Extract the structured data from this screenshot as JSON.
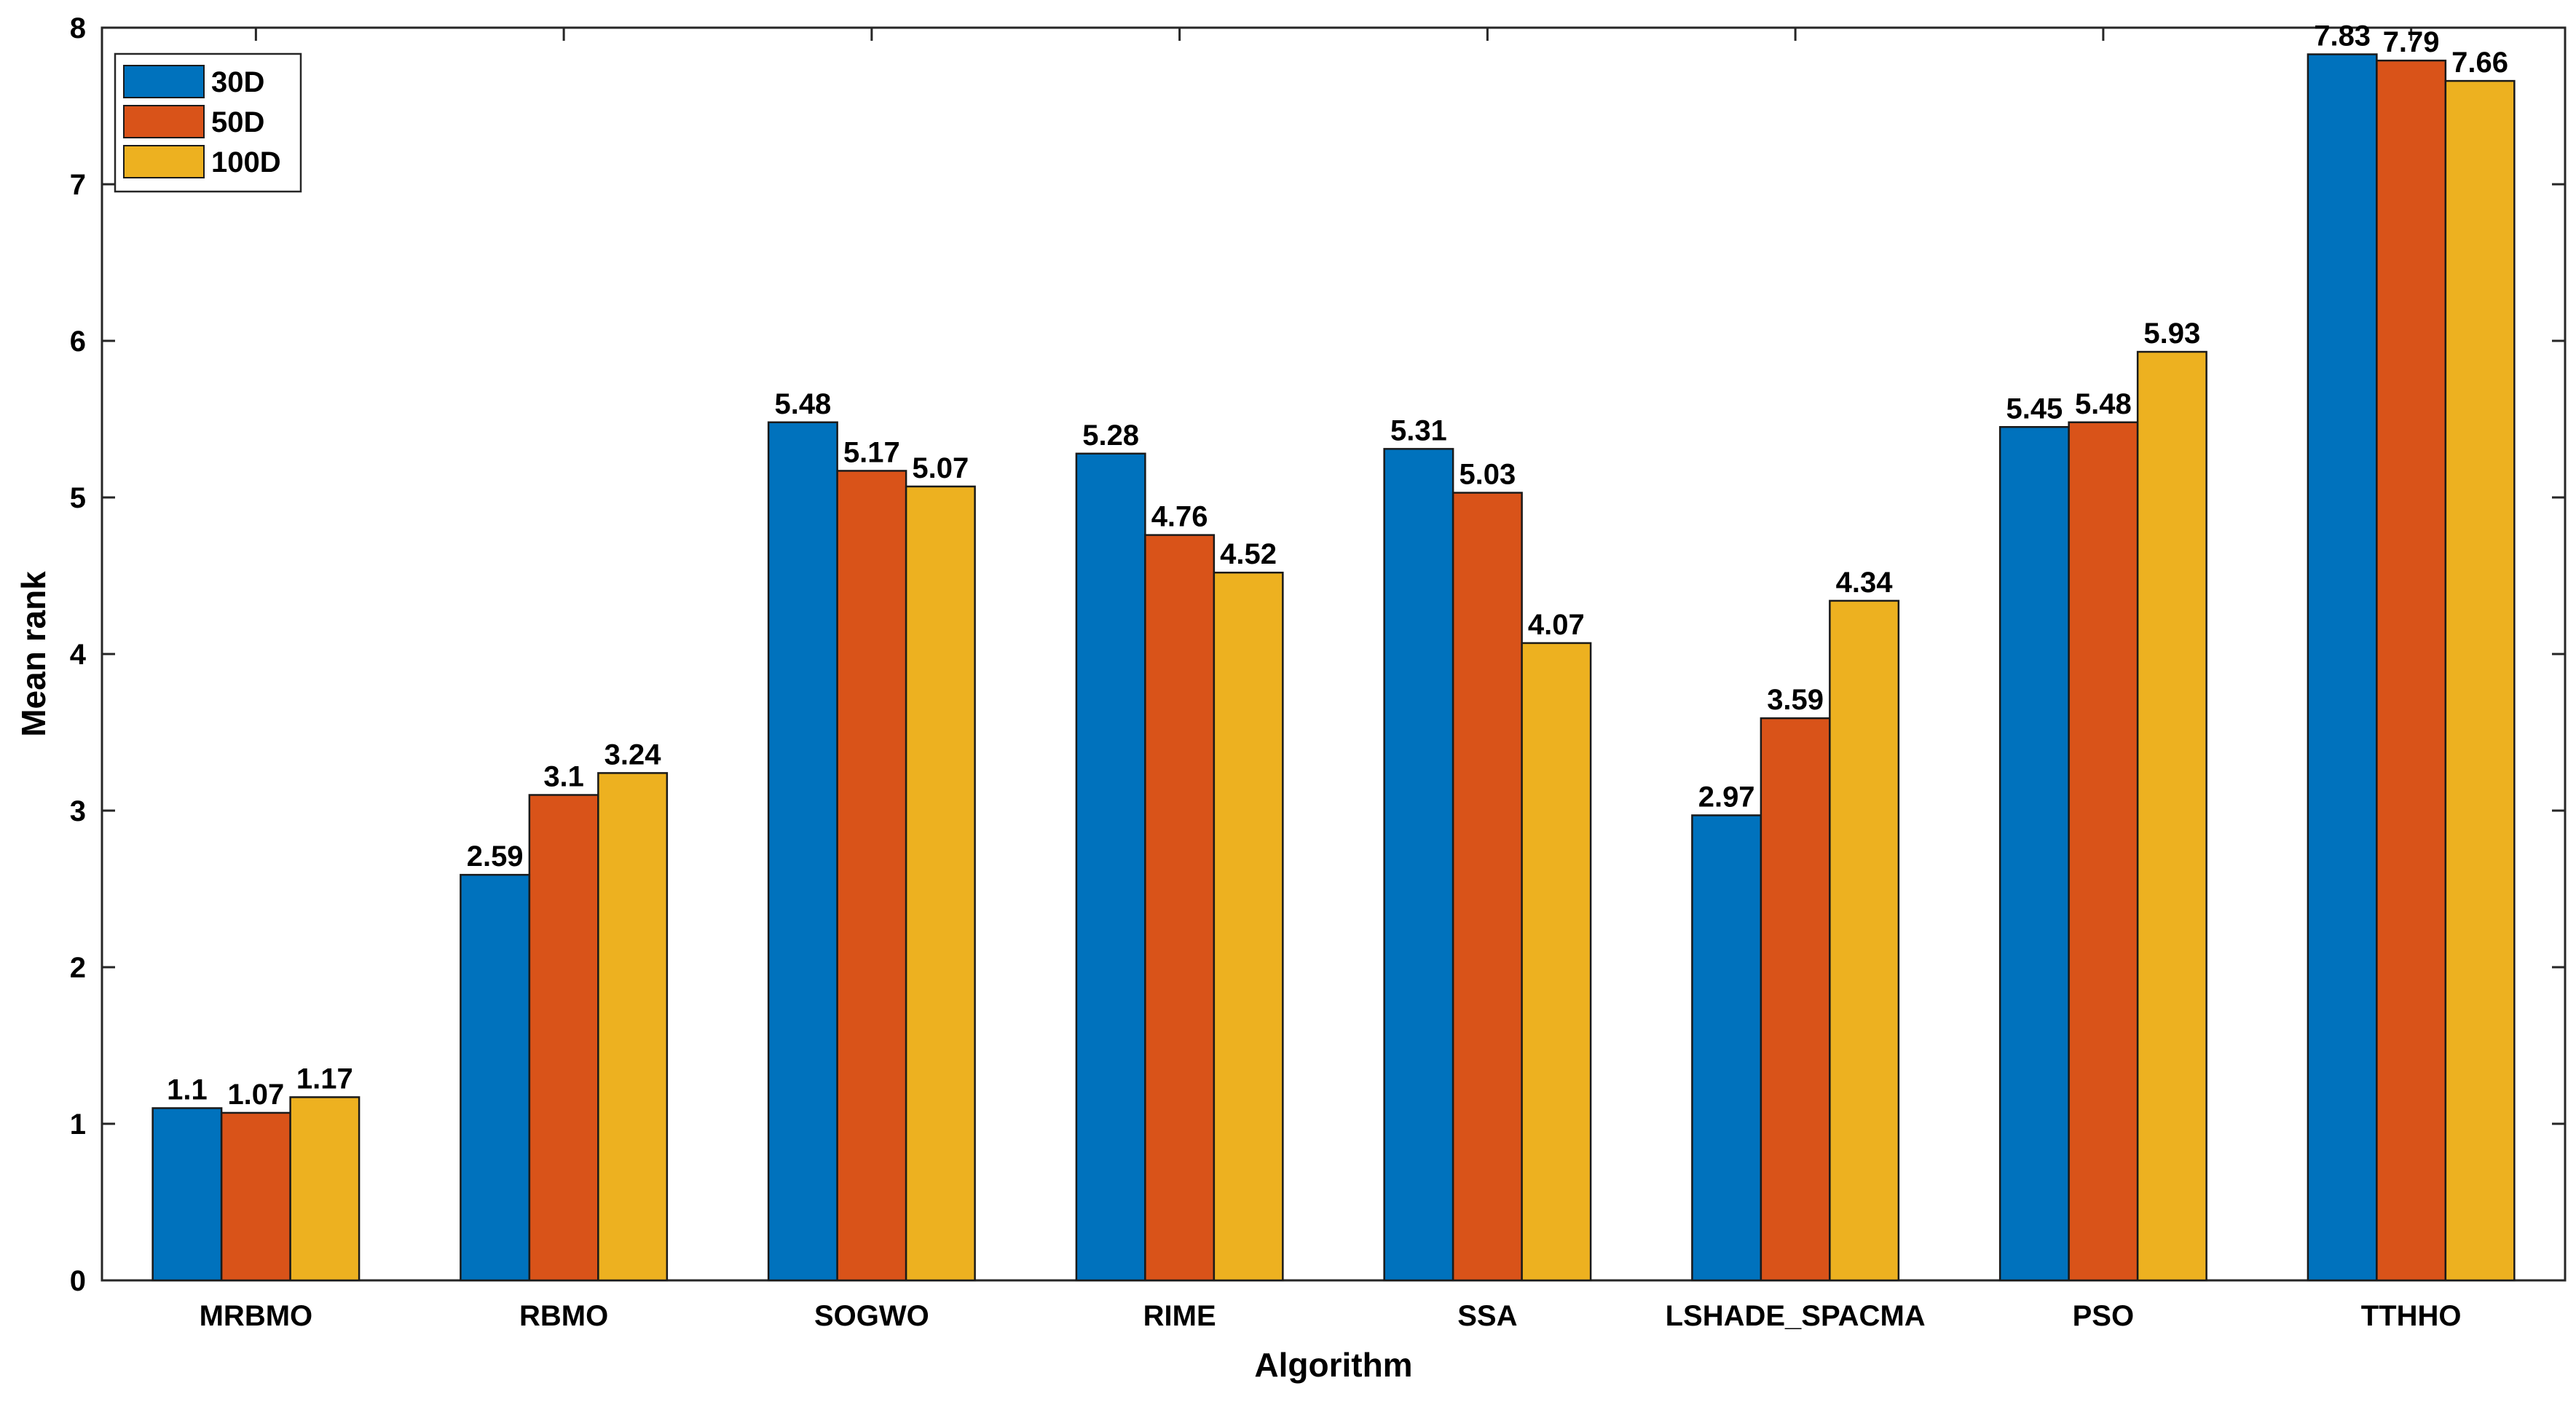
{
  "chart_data": {
    "type": "bar",
    "title": "",
    "xlabel": "Algorithm",
    "ylabel": "Mean rank",
    "ylim": [
      0,
      8
    ],
    "yticks": [
      0,
      1,
      2,
      3,
      4,
      5,
      6,
      7,
      8
    ],
    "grid": false,
    "legend_position": "top-left",
    "categories": [
      "MRBMO",
      "RBMO",
      "SOGWO",
      "RIME",
      "SSA",
      "LSHADE_SPACMA",
      "PSO",
      "TTHHO"
    ],
    "series": [
      {
        "name": "30D",
        "color": "#0072BD",
        "values": [
          1.1,
          2.59,
          5.48,
          5.28,
          5.31,
          2.97,
          5.45,
          7.83
        ]
      },
      {
        "name": "50D",
        "color": "#D95319",
        "values": [
          1.07,
          3.1,
          5.17,
          4.76,
          5.03,
          3.59,
          5.48,
          7.79
        ]
      },
      {
        "name": "100D",
        "color": "#EDB120",
        "values": [
          1.17,
          3.24,
          5.07,
          4.52,
          4.07,
          4.34,
          5.93,
          7.66
        ]
      }
    ]
  }
}
